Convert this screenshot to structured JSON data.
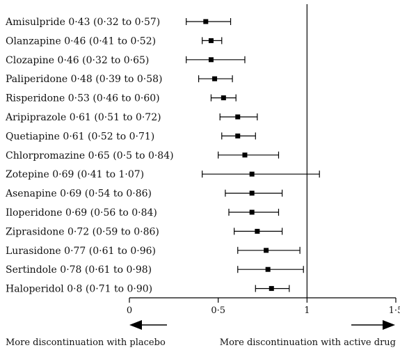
{
  "chart_data": {
    "type": "forest",
    "title": "",
    "xlabel": "",
    "ylabel": "",
    "xlim": [
      0,
      1.5
    ],
    "reference_line": 1,
    "x_ticks": [
      {
        "value": 0,
        "label": "0"
      },
      {
        "value": 0.5,
        "label": "0·5"
      },
      {
        "value": 1,
        "label": "1"
      },
      {
        "value": 1.5,
        "label": "1·5"
      }
    ],
    "rows": [
      {
        "label": "Amisulpride 0·43 (0·32 to 0·57)",
        "estimate": 0.43,
        "lower": 0.32,
        "upper": 0.57
      },
      {
        "label": "Olanzapine 0·46 (0·41 to 0·52)",
        "estimate": 0.46,
        "lower": 0.41,
        "upper": 0.52
      },
      {
        "label": "Clozapine 0·46 (0·32 to 0·65)",
        "estimate": 0.46,
        "lower": 0.32,
        "upper": 0.65
      },
      {
        "label": "Paliperidone 0·48 (0·39 to 0·58)",
        "estimate": 0.48,
        "lower": 0.39,
        "upper": 0.58
      },
      {
        "label": "Risperidone 0·53 (0·46 to 0·60)",
        "estimate": 0.53,
        "lower": 0.46,
        "upper": 0.6
      },
      {
        "label": "Aripiprazole 0·61 (0·51 to 0·72)",
        "estimate": 0.61,
        "lower": 0.51,
        "upper": 0.72
      },
      {
        "label": "Quetiapine 0·61 (0·52 to 0·71)",
        "estimate": 0.61,
        "lower": 0.52,
        "upper": 0.71
      },
      {
        "label": "Chlorpromazine 0·65 (0·5 to 0·84)",
        "estimate": 0.65,
        "lower": 0.5,
        "upper": 0.84
      },
      {
        "label": "Zotepine 0·69 (0·41 to 1·07)",
        "estimate": 0.69,
        "lower": 0.41,
        "upper": 1.07
      },
      {
        "label": "Asenapine 0·69 (0·54 to 0·86)",
        "estimate": 0.69,
        "lower": 0.54,
        "upper": 0.86
      },
      {
        "label": "Iloperidone 0·69 (0·56 to 0·84)",
        "estimate": 0.69,
        "lower": 0.56,
        "upper": 0.84
      },
      {
        "label": "Ziprasidone 0·72 (0·59 to 0·86)",
        "estimate": 0.72,
        "lower": 0.59,
        "upper": 0.86
      },
      {
        "label": "Lurasidone 0·77 (0·61 to 0·96)",
        "estimate": 0.77,
        "lower": 0.61,
        "upper": 0.96
      },
      {
        "label": "Sertindole 0·78 (0·61 to 0·98)",
        "estimate": 0.78,
        "lower": 0.61,
        "upper": 0.98
      },
      {
        "label": "Haloperidol 0·8 (0·71 to 0·90)",
        "estimate": 0.8,
        "lower": 0.71,
        "upper": 0.9
      }
    ],
    "annotations": {
      "left": "More discontinuation with placebo",
      "right": "More discontinuation with active drug"
    },
    "colors": {
      "marks": "#000000"
    }
  }
}
